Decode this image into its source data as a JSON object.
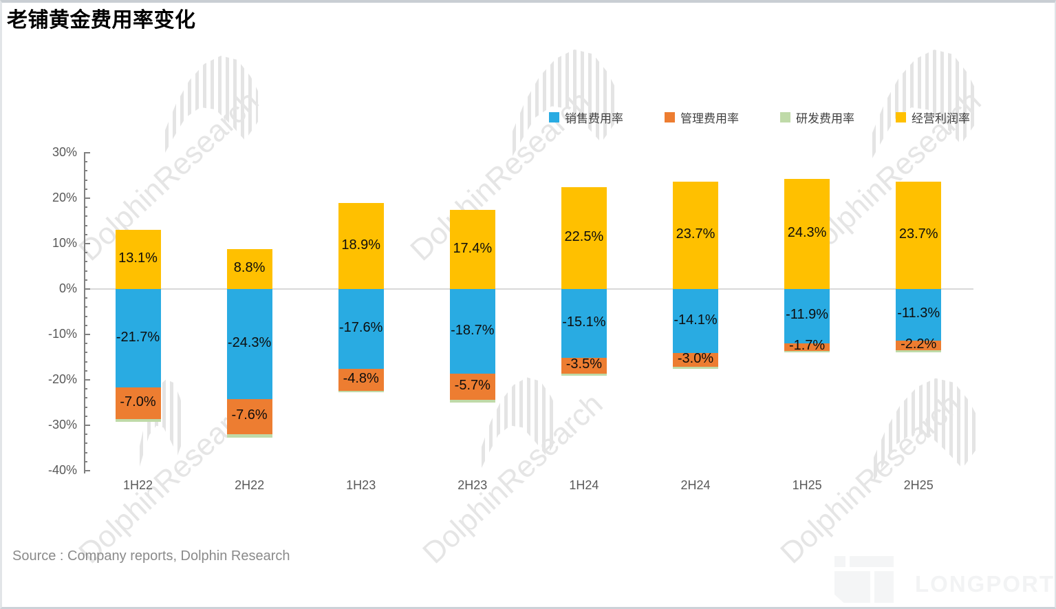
{
  "page": {
    "title": "老铺黄金费用率变化",
    "source": "Source : Company reports, Dolphin Research",
    "watermark": "DolphinResearch",
    "brand": "LONGPORT"
  },
  "chart_data": {
    "type": "bar",
    "stacked": true,
    "title": "老铺黄金费用率变化",
    "categories": [
      "1H22",
      "2H22",
      "1H23",
      "2H23",
      "1H24",
      "2H24",
      "1H25",
      "2H25"
    ],
    "series": [
      {
        "name": "销售费用率",
        "color": "#29ABE2",
        "show_labels": true,
        "values": [
          -21.7,
          -24.3,
          -17.6,
          -18.7,
          -15.1,
          -14.1,
          -11.9,
          -11.3
        ]
      },
      {
        "name": "管理费用率",
        "color": "#ED7D31",
        "show_labels": true,
        "values": [
          -7.0,
          -7.6,
          -4.8,
          -5.7,
          -3.5,
          -3.0,
          -1.7,
          -2.2
        ]
      },
      {
        "name": "研发费用率",
        "color": "#BFDAA8",
        "show_labels": false,
        "estimated_from_chart": true,
        "values": [
          -0.6,
          -0.9,
          -0.4,
          -0.6,
          -0.5,
          -0.5,
          -0.4,
          -0.5
        ]
      },
      {
        "name": "经营利润率",
        "color": "#FFC000",
        "show_labels": true,
        "values": [
          13.1,
          8.8,
          18.9,
          17.4,
          22.5,
          23.7,
          24.3,
          23.7
        ]
      }
    ],
    "ylim": [
      -40,
      30
    ],
    "ytick_step": 10,
    "minor_tick_step": 2,
    "ytick_values": [
      30,
      20,
      10,
      0,
      -10,
      -20,
      -30,
      -40
    ],
    "ytick_labels": [
      "30%",
      "20%",
      "10%",
      "0%",
      "-10%",
      "-20%",
      "-30%",
      "-40%"
    ],
    "xlabel": "",
    "ylabel": "",
    "legend_position": "top-right",
    "grid": "zero-line-only"
  }
}
